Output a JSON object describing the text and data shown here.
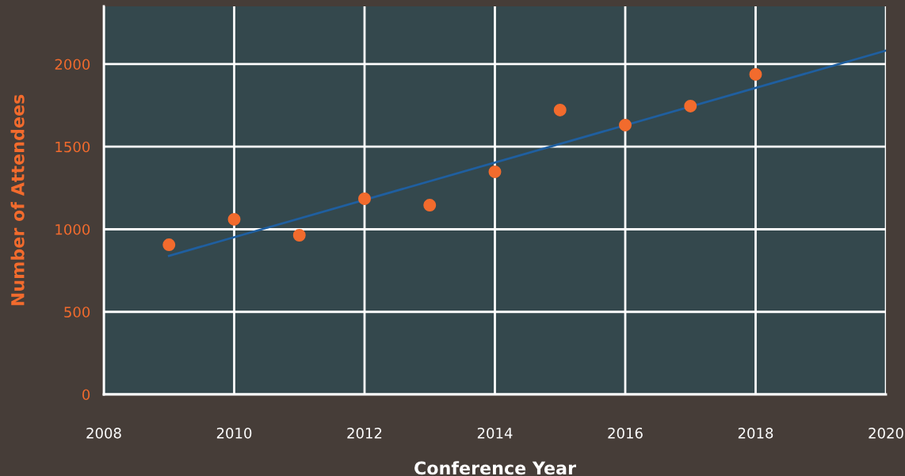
{
  "chart_data": {
    "type": "scatter",
    "xlabel": "Conference Year",
    "ylabel": "Number of Attendees",
    "x": [
      2009,
      2010,
      2011,
      2012,
      2013,
      2014,
      2015,
      2016,
      2017,
      2018
    ],
    "series": [
      {
        "color": "#f26b2d",
        "marker": "circle",
        "values": [
          906,
          1060,
          964,
          1185,
          1146,
          1348,
          1722,
          1631,
          1746,
          1938
        ]
      },
      {
        "type": "line",
        "color": "#1f5fa0",
        "x": [
          2009,
          2020
        ],
        "values": [
          839,
          2082
        ],
        "marker": "none",
        "line_style": "solid"
      }
    ],
    "xlim": [
      2008,
      2020
    ],
    "xticks": [
      2008,
      2010,
      2012,
      2014,
      2016,
      2018,
      2020
    ],
    "ylim": [
      0,
      2350
    ],
    "yticks": [
      0,
      500,
      1000,
      1500,
      2000
    ],
    "grid": true,
    "legend": false
  }
}
